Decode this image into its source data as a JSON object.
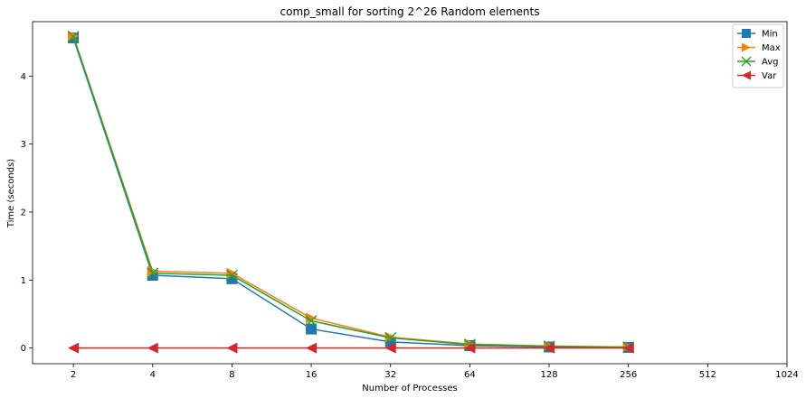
{
  "chart_data": {
    "type": "line",
    "title": "comp_small for sorting 2^26 Random elements",
    "xlabel": "Number of Processes",
    "ylabel": "Time (seconds)",
    "x_scale": "log2",
    "categories": [
      "2",
      "4",
      "8",
      "16",
      "32",
      "64",
      "128",
      "256",
      "512",
      "1024"
    ],
    "x": [
      2,
      4,
      8,
      16,
      32,
      64,
      128,
      256
    ],
    "xlim": [
      1.4,
      1024
    ],
    "ylim": [
      -0.23,
      4.8
    ],
    "yticks": [
      0,
      1,
      2,
      3,
      4
    ],
    "grid": false,
    "legend_position": "top-right",
    "series": [
      {
        "name": "Min",
        "color": "#1f77b4",
        "marker": "square",
        "values": [
          4.56,
          1.07,
          1.02,
          0.28,
          0.09,
          0.035,
          0.015,
          0.01
        ]
      },
      {
        "name": "Max",
        "color": "#ff7f0e",
        "marker": "triangle-right",
        "values": [
          4.59,
          1.13,
          1.1,
          0.44,
          0.16,
          0.06,
          0.03,
          0.015
        ]
      },
      {
        "name": "Avg",
        "color": "#2ca02c",
        "marker": "x",
        "values": [
          4.58,
          1.1,
          1.07,
          0.4,
          0.15,
          0.05,
          0.025,
          0.012
        ]
      },
      {
        "name": "Var",
        "color": "#d62728",
        "marker": "triangle-left",
        "values": [
          0.0,
          0.0,
          0.0,
          0.0,
          0.0,
          0.0,
          0.0,
          0.0
        ]
      }
    ]
  }
}
